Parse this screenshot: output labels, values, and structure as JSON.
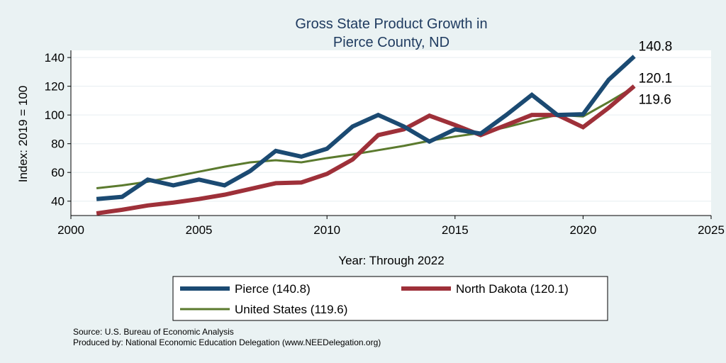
{
  "chart_data": {
    "type": "line",
    "title": [
      "Gross State Product Growth in",
      "Pierce County, ND"
    ],
    "xlabel": "Year: Through 2022",
    "ylabel": "Index: 2019 = 100",
    "xlim": [
      2000,
      2025
    ],
    "ylim": [
      30,
      145
    ],
    "xticks": [
      2000,
      2005,
      2010,
      2015,
      2020,
      2025
    ],
    "yticks": [
      40,
      60,
      80,
      100,
      120,
      140
    ],
    "x": [
      2001,
      2002,
      2003,
      2004,
      2005,
      2006,
      2007,
      2008,
      2009,
      2010,
      2011,
      2012,
      2013,
      2014,
      2015,
      2016,
      2017,
      2018,
      2019,
      2020,
      2021,
      2022
    ],
    "series": [
      {
        "name": "Pierce",
        "legend_label": "Pierce  (140.8)",
        "end_label": "140.8",
        "color": "#1b4a72",
        "width": "thick",
        "values": [
          41.5,
          43,
          55,
          51,
          55,
          51,
          61,
          75,
          71,
          76.5,
          92,
          100,
          92,
          81.5,
          90,
          87,
          100,
          114,
          100,
          100.5,
          124.5,
          140.8
        ]
      },
      {
        "name": "North Dakota",
        "legend_label": "North Dakota (120.1)",
        "end_label": "120.1",
        "color": "#9e3039",
        "width": "thick",
        "values": [
          31.5,
          34,
          37,
          39,
          41.5,
          44.5,
          48.5,
          52.5,
          53,
          59,
          69,
          86,
          90,
          99.5,
          93,
          86,
          93,
          100,
          100,
          91.5,
          105,
          120.1
        ]
      },
      {
        "name": "United States",
        "legend_label": "United States (119.6)",
        "end_label": "119.6",
        "color": "#5b7a2e",
        "width": "thin",
        "values": [
          49,
          51,
          53.5,
          57,
          60.5,
          64,
          67,
          68.5,
          67,
          70,
          72.5,
          75.5,
          78.5,
          82,
          85,
          87.5,
          91.5,
          96,
          100,
          99,
          109,
          119.6
        ]
      }
    ],
    "legend": {
      "position": "bottom"
    }
  },
  "footer": {
    "source": "Source: U.S. Bureau of Economic Analysis",
    "produced": "Produced by: National Economic Education Delegation (www.NEEDelegation.org)"
  }
}
